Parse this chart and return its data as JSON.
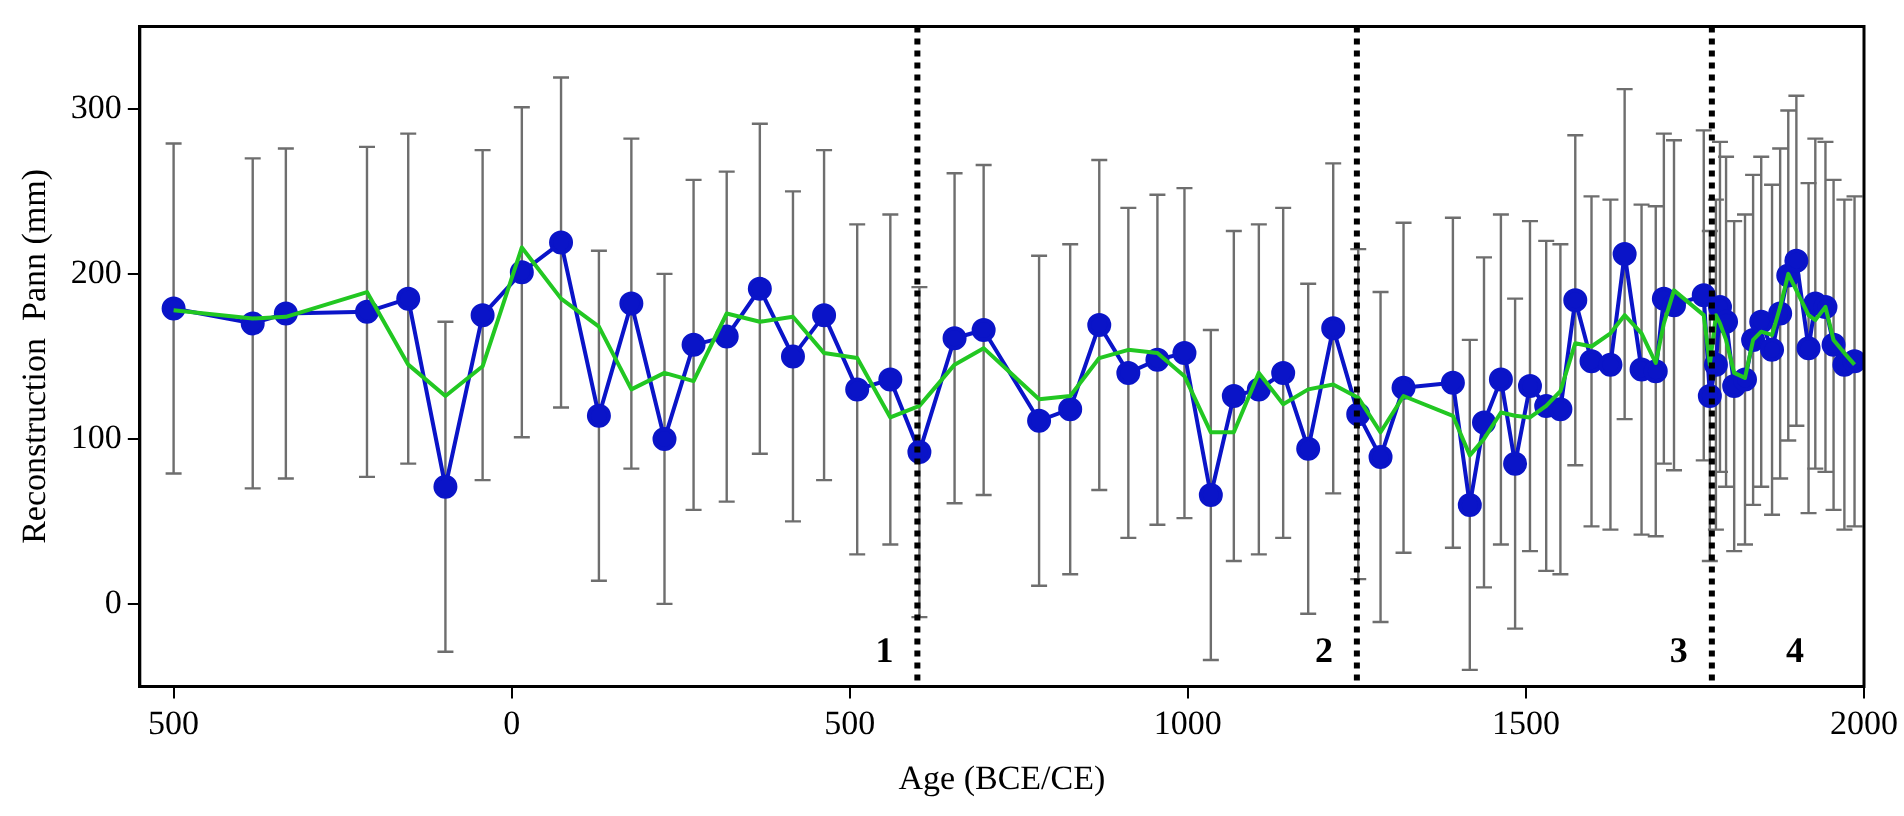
{
  "chart_data": {
    "type": "line",
    "xlabel": "Age (BCE/CE)",
    "ylabel": "Reconstruction  Pann (mm)",
    "x": [
      -500,
      -383,
      -334,
      -214,
      -153,
      -98,
      -43,
      15,
      73,
      129,
      177,
      226,
      269,
      318,
      367,
      416,
      462,
      511,
      560,
      603,
      655,
      698,
      780,
      826,
      869,
      912,
      955,
      995,
      1034,
      1068,
      1105,
      1141,
      1178,
      1215,
      1252,
      1285,
      1319,
      1392,
      1417,
      1438,
      1463,
      1484,
      1506,
      1530,
      1551,
      1573,
      1597,
      1625,
      1646,
      1671,
      1692,
      1704,
      1719,
      1763,
      1772,
      1781,
      1787,
      1796,
      1808,
      1824,
      1836,
      1848,
      1864,
      1876,
      1888,
      1900,
      1918,
      1928,
      1943,
      1955,
      1971,
      1986
    ],
    "series": [
      {
        "color": "#0a14c8",
        "marker": "circle",
        "values": [
          179,
          170,
          176,
          177,
          185,
          71,
          175,
          201,
          219,
          114,
          182,
          100,
          157,
          162,
          191,
          150,
          175,
          130,
          136,
          92,
          161,
          166,
          111,
          118,
          169,
          140,
          148,
          152,
          66,
          126,
          130,
          140,
          94,
          167,
          115,
          89,
          131,
          134,
          60,
          110,
          136,
          85,
          132,
          120,
          118,
          184,
          147,
          145,
          212,
          142,
          141,
          185,
          181,
          187,
          126,
          145,
          180,
          171,
          132,
          136,
          160,
          171,
          154,
          176,
          199,
          208,
          155,
          182,
          180,
          157,
          145,
          147
        ],
        "errors": [
          100,
          100,
          100,
          100,
          100,
          100,
          100,
          100,
          100,
          100,
          100,
          100,
          100,
          100,
          100,
          100,
          100,
          100,
          100,
          100,
          100,
          100,
          100,
          100,
          100,
          100,
          100,
          100,
          100,
          100,
          100,
          100,
          100,
          100,
          100,
          100,
          100,
          100,
          100,
          100,
          100,
          100,
          100,
          100,
          100,
          100,
          100,
          100,
          100,
          100,
          100,
          100,
          100,
          100,
          100,
          100,
          100,
          100,
          100,
          100,
          100,
          100,
          100,
          100,
          100,
          100,
          100,
          100,
          100,
          100,
          100,
          100
        ]
      },
      {
        "color": "#22c722",
        "marker": "none",
        "values": [
          178,
          173,
          174,
          189,
          145,
          126,
          144,
          216,
          185,
          168,
          130,
          140,
          135,
          176,
          171,
          174,
          152,
          149,
          113,
          120,
          145,
          155,
          124,
          126,
          149,
          154,
          152,
          138,
          104,
          104,
          140,
          121,
          130,
          133,
          125,
          104,
          126,
          114,
          90,
          100,
          116,
          114,
          113,
          120,
          129,
          158,
          156,
          164,
          175,
          164,
          146,
          170,
          190,
          175,
          145,
          175,
          170,
          160,
          140,
          137,
          160,
          165,
          163,
          180,
          200,
          190,
          175,
          172,
          180,
          160,
          152,
          145
        ]
      }
    ],
    "xlim": [
      -550,
      2000
    ],
    "xticks": [
      {
        "value": -500,
        "label": "500"
      },
      0,
      500,
      1000,
      1500,
      2000
    ],
    "ylim": [
      -50,
      350
    ],
    "yticks": [
      0,
      100,
      200,
      300
    ],
    "ref_lines": [
      {
        "axis": "x",
        "value": 600,
        "color": "#000000",
        "line_style": "dotted"
      },
      {
        "axis": "x",
        "value": 1250,
        "color": "#000000",
        "line_style": "dotted"
      },
      {
        "axis": "x",
        "value": 1775,
        "color": "#000000",
        "line_style": "dotted"
      }
    ],
    "annotations": [
      "1",
      "2",
      "3",
      "4"
    ],
    "grid": false,
    "legend": false
  }
}
